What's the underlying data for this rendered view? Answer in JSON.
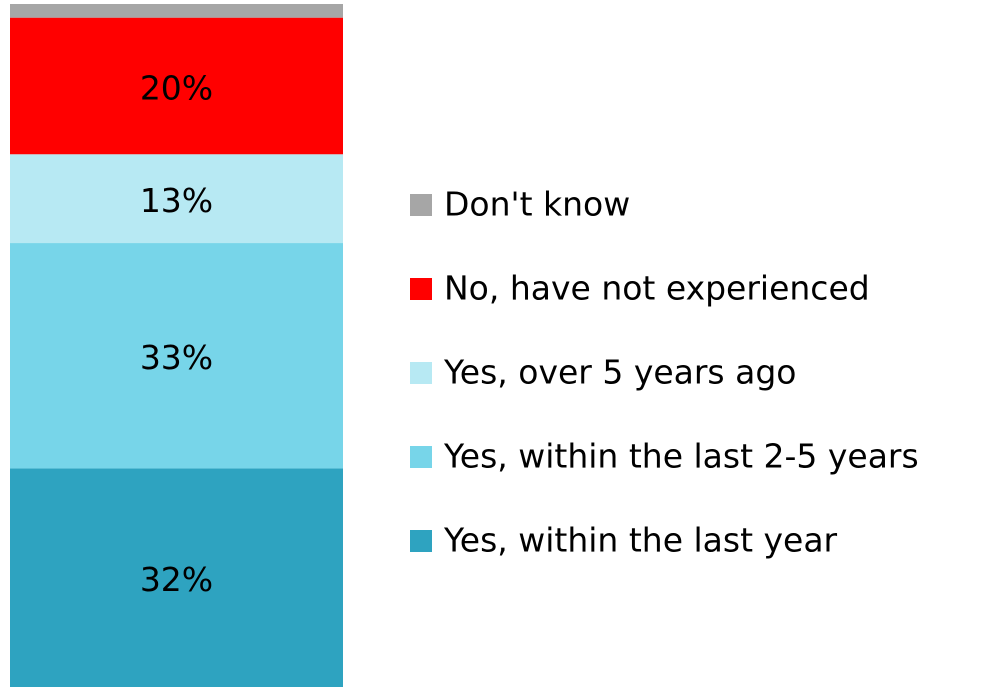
{
  "chart_data": {
    "type": "stacked-bar",
    "series": [
      {
        "name": "Yes, within the last year",
        "color": "#2ea3c0",
        "values": [
          32
        ],
        "value_labels": [
          "32%"
        ]
      },
      {
        "name": "Yes, within the last 2-5 years",
        "color": "#77d5e9",
        "values": [
          33
        ],
        "value_labels": [
          "33%"
        ]
      },
      {
        "name": "Yes, over 5 years ago",
        "color": "#b7e9f3",
        "values": [
          13
        ],
        "value_labels": [
          "13%"
        ]
      },
      {
        "name": "No, have not experienced",
        "color": "#ff0000",
        "values": [
          20
        ],
        "value_labels": [
          "20%"
        ]
      },
      {
        "name": "Don't know",
        "color": "#a6a6a6",
        "values": [
          2
        ]
      }
    ],
    "legend": "right"
  }
}
